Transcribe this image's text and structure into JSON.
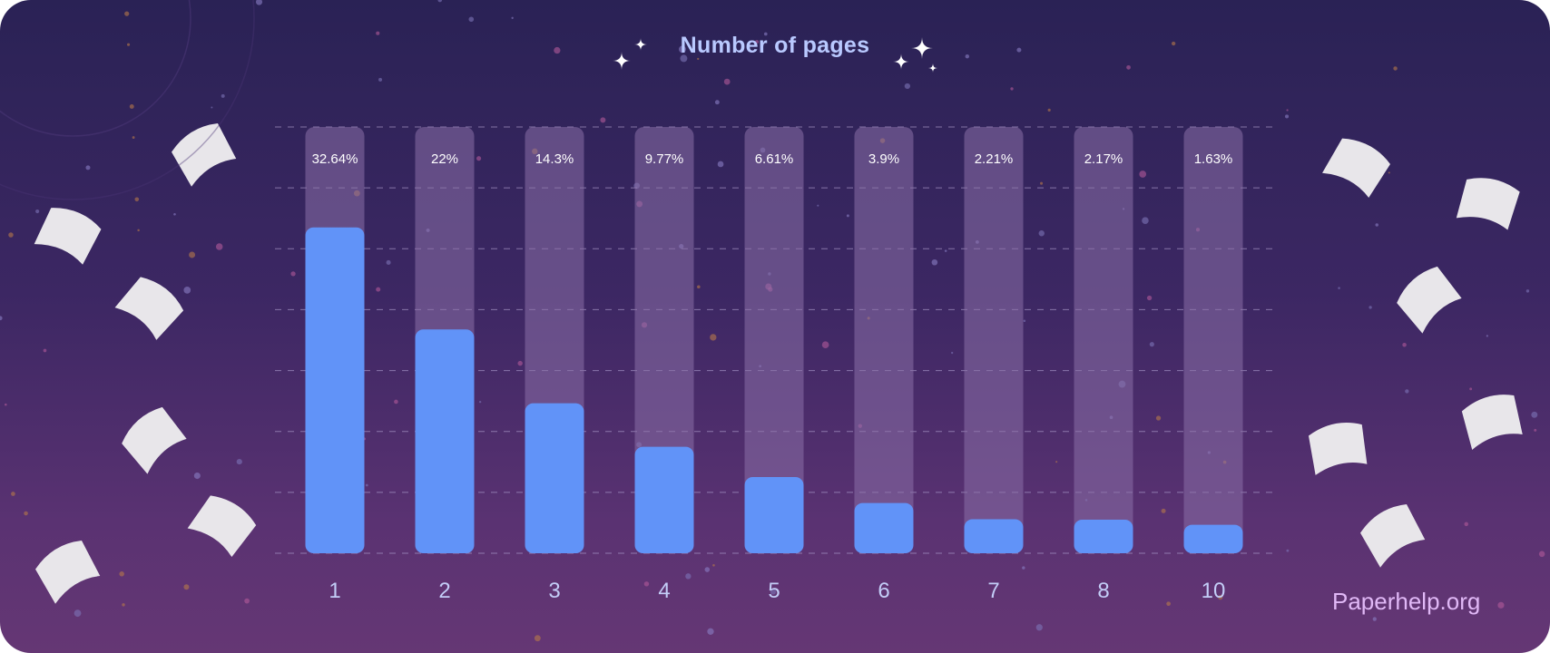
{
  "chart_data": {
    "type": "bar",
    "title": "Number of pages",
    "categories": [
      "1",
      "2",
      "3",
      "4",
      "5",
      "6",
      "7",
      "8",
      "10"
    ],
    "values": [
      32.64,
      22,
      14.3,
      9.77,
      6.61,
      3.9,
      2.21,
      2.17,
      1.63
    ],
    "value_labels": [
      "32.64%",
      "22%",
      "14.3%",
      "9.77%",
      "6.61%",
      "3.9%",
      "2.21%",
      "2.17%",
      "1.63%"
    ],
    "xlabel": "",
    "ylabel": "",
    "grid": true,
    "colors": {
      "bar": "#6193f8",
      "track": "#8a6fa8"
    }
  },
  "brand": "Paperhelp.org"
}
